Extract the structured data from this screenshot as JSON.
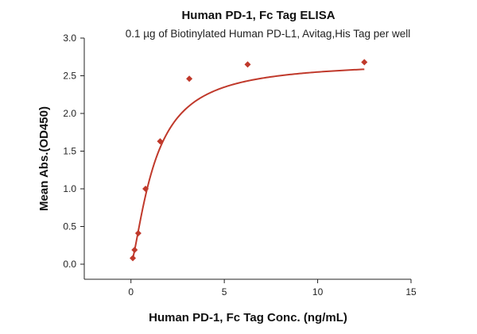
{
  "chart_data": {
    "type": "scatter",
    "title": "Human PD-1, Fc Tag ELISA",
    "subtitle": "0.1 µg of Biotinylated Human PD-L1, Avitag,His Tag per well",
    "xlabel": "Human PD-1, Fc Tag Conc. (ng/mL)",
    "ylabel": "Mean Abs.(OD450)",
    "xlim": [
      -2.5,
      15
    ],
    "ylim": [
      -0.2,
      3.0
    ],
    "x_ticks": [
      0,
      5,
      10,
      15
    ],
    "x_tick_labels": [
      "0",
      "5",
      "10",
      "15"
    ],
    "y_ticks": [
      0.0,
      0.5,
      1.0,
      1.5,
      2.0,
      2.5,
      3.0
    ],
    "y_tick_labels": [
      "0.0",
      "0.5",
      "1.0",
      "1.5",
      "2.0",
      "2.5",
      "3.0"
    ],
    "grid": false,
    "legend": "none",
    "series": [
      {
        "x": [
          0.098,
          0.195,
          0.391,
          0.781,
          1.563,
          3.125,
          6.25,
          12.5
        ],
        "y": [
          0.08,
          0.19,
          0.41,
          1.0,
          1.63,
          2.46,
          2.65,
          2.68
        ],
        "marker": "diamond",
        "color": "#c0392b",
        "fit_curve": {
          "type": "sigmoidal",
          "top": 2.69,
          "ec50": 1.26,
          "hill": 1.4
        }
      }
    ]
  }
}
